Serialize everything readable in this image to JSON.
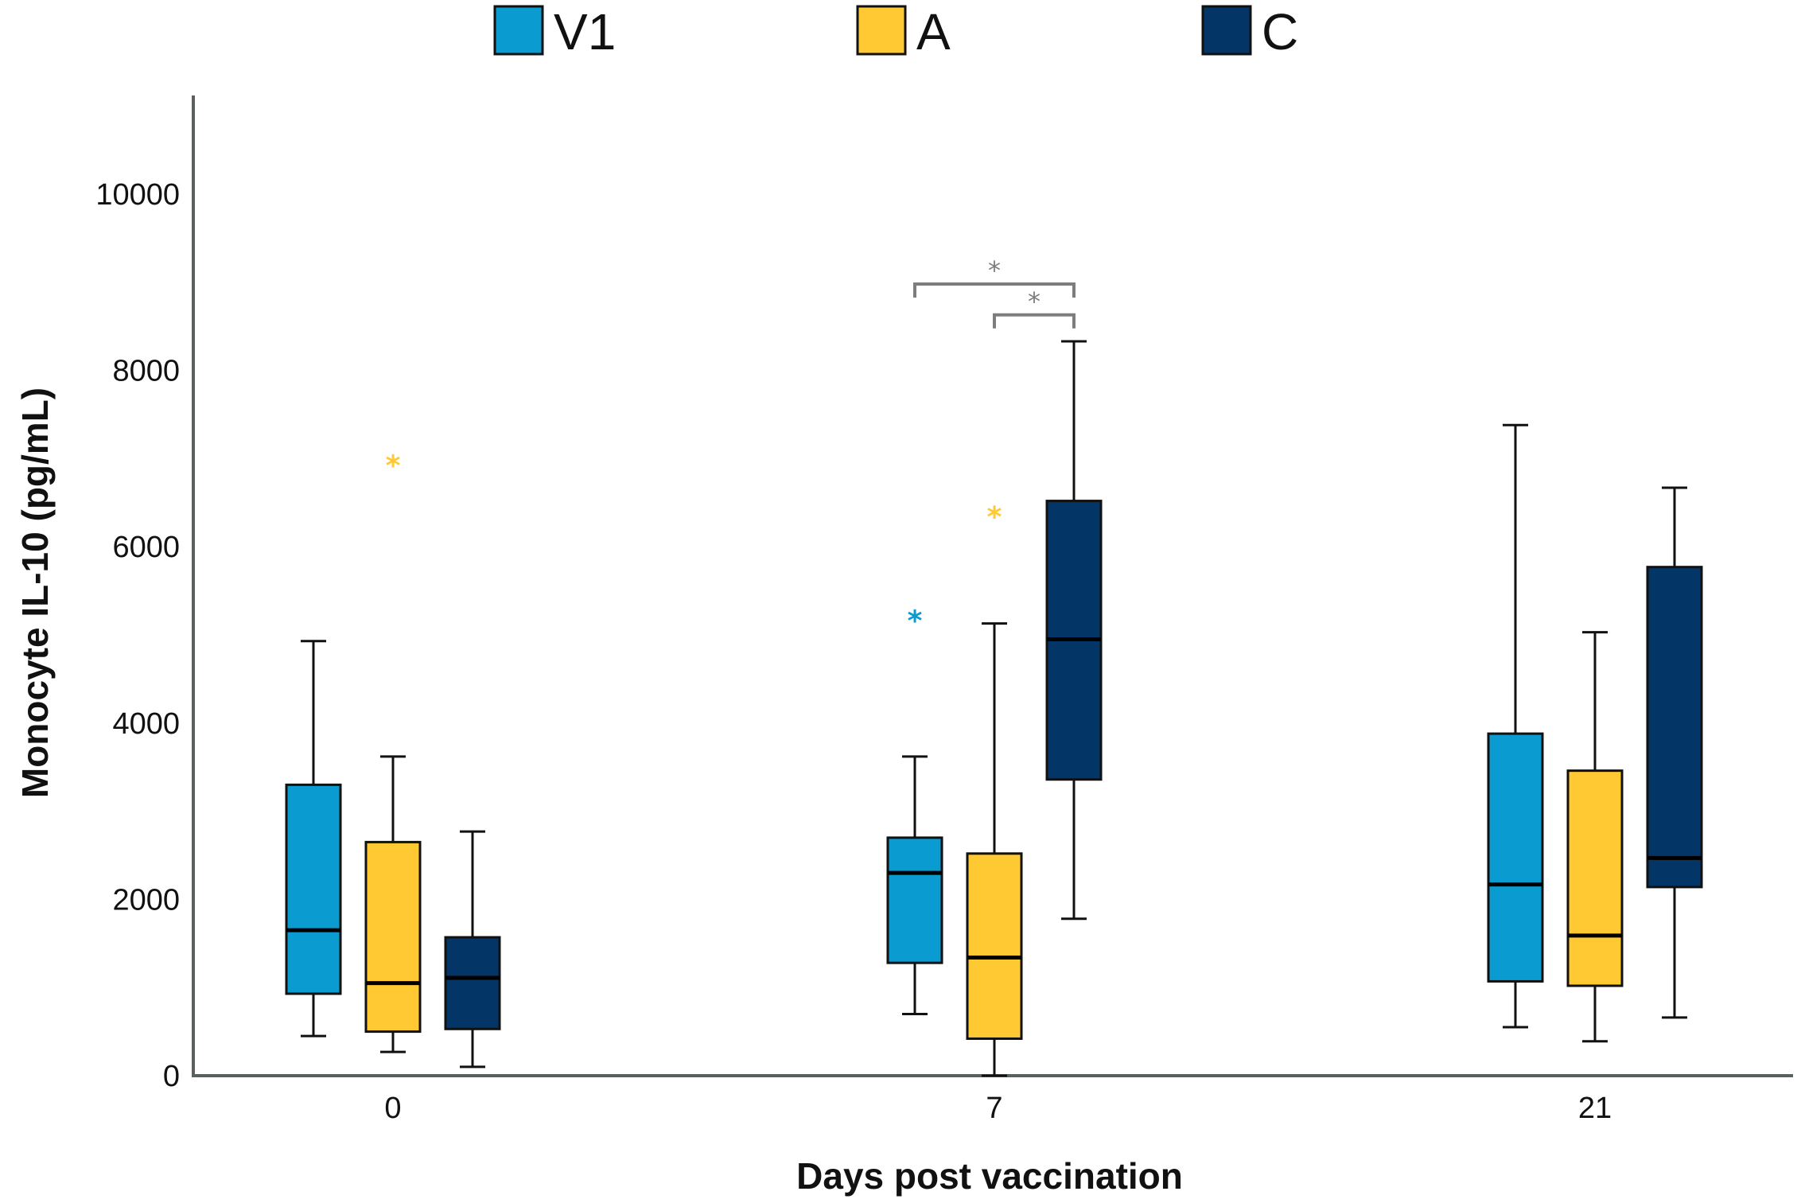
{
  "chart_data": {
    "type": "boxplot",
    "title": "",
    "xlabel": "Days post vaccination",
    "ylabel": "Monocyte IL-10 (pg/mL)",
    "ylim": [
      0,
      11000
    ],
    "yticks": [
      0,
      2000,
      4000,
      6000,
      8000,
      10000
    ],
    "categories": [
      "0",
      "7",
      "21"
    ],
    "legend_position": "top",
    "series": [
      {
        "name": "V1",
        "color": "#0a9bd0",
        "boxes": [
          {
            "min": 450,
            "q1": 930,
            "median": 1650,
            "q3": 3300,
            "max": 4930
          },
          {
            "min": 700,
            "q1": 1280,
            "median": 2300,
            "q3": 2700,
            "max": 3620
          },
          {
            "min": 550,
            "q1": 1070,
            "median": 2170,
            "q3": 3880,
            "max": 7380
          }
        ],
        "outliers": [
          [],
          [
            5230
          ],
          []
        ]
      },
      {
        "name": "A",
        "color": "#fec933",
        "boxes": [
          {
            "min": 270,
            "q1": 500,
            "median": 1050,
            "q3": 2650,
            "max": 3620
          },
          {
            "min": 0,
            "q1": 420,
            "median": 1340,
            "q3": 2520,
            "max": 5130
          },
          {
            "min": 390,
            "q1": 1020,
            "median": 1590,
            "q3": 3460,
            "max": 5030
          }
        ],
        "outliers": [
          [
            6990
          ],
          [
            6410
          ],
          []
        ]
      },
      {
        "name": "C",
        "color": "#033666",
        "boxes": [
          {
            "min": 100,
            "q1": 530,
            "median": 1110,
            "q3": 1570,
            "max": 2770
          },
          {
            "min": 1780,
            "q1": 3360,
            "median": 4950,
            "q3": 6520,
            "max": 8330
          },
          {
            "min": 660,
            "q1": 2140,
            "median": 2470,
            "q3": 5770,
            "max": 6670
          }
        ],
        "outliers": [
          [],
          [],
          []
        ]
      }
    ],
    "significance": [
      {
        "category": "7",
        "from": "V1",
        "to": "C",
        "label": "*",
        "y": 8980
      },
      {
        "category": "7",
        "from": "A",
        "to": "C",
        "label": "*",
        "y": 8630
      }
    ],
    "outlier_marker": "*"
  }
}
